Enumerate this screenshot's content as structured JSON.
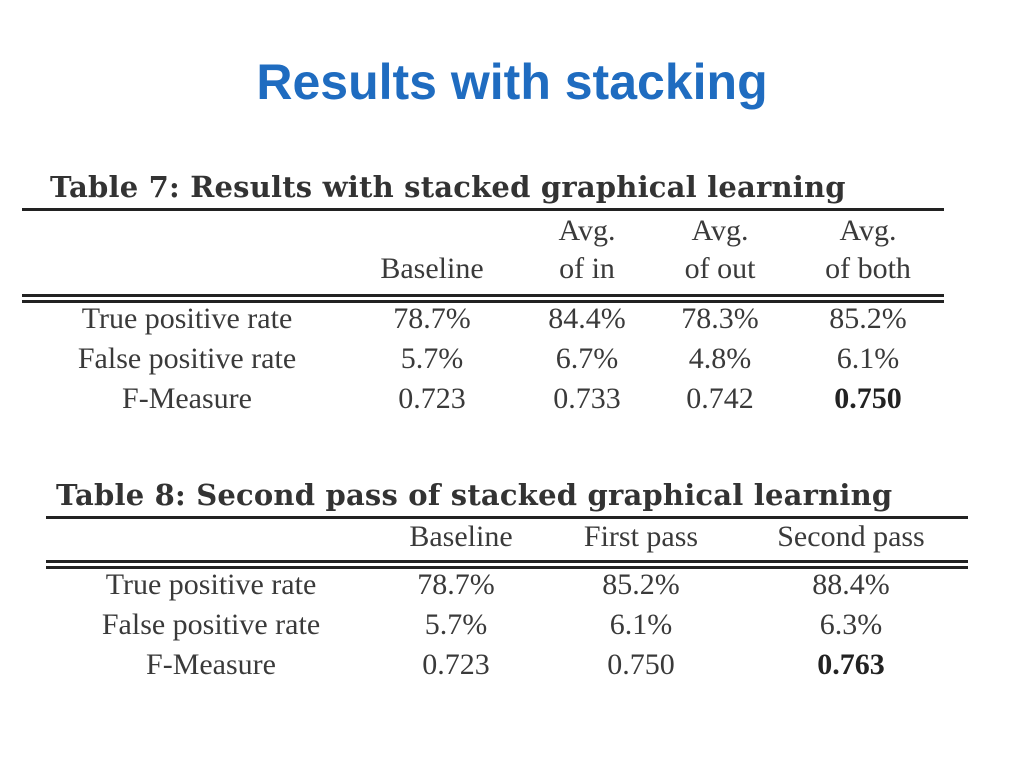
{
  "slide": {
    "title": "Results with stacking"
  },
  "table7": {
    "caption": "Table 7: Results with stacked graphical learning",
    "header_top": [
      "",
      "",
      "Avg.",
      "Avg.",
      "Avg."
    ],
    "header_bottom": [
      "",
      "Baseline",
      "of in",
      "of out",
      "of both"
    ],
    "rows": [
      [
        "True positive rate",
        "78.7%",
        "84.4%",
        "78.3%",
        "85.2%"
      ],
      [
        "False positive rate",
        "5.7%",
        "6.7%",
        "4.8%",
        "6.1%"
      ],
      [
        "F-Measure",
        "0.723",
        "0.733",
        "0.742",
        "0.750"
      ]
    ],
    "bold_cell": "0.750"
  },
  "table8": {
    "caption": "Table 8: Second pass of stacked graphical learning",
    "header": [
      "",
      "Baseline",
      "First pass",
      "Second pass"
    ],
    "rows": [
      [
        "True positive rate",
        "78.7%",
        "85.2%",
        "88.4%"
      ],
      [
        "False positive rate",
        "5.7%",
        "6.1%",
        "6.3%"
      ],
      [
        "F-Measure",
        "0.723",
        "0.750",
        "0.763"
      ]
    ],
    "bold_cell": "0.763"
  }
}
